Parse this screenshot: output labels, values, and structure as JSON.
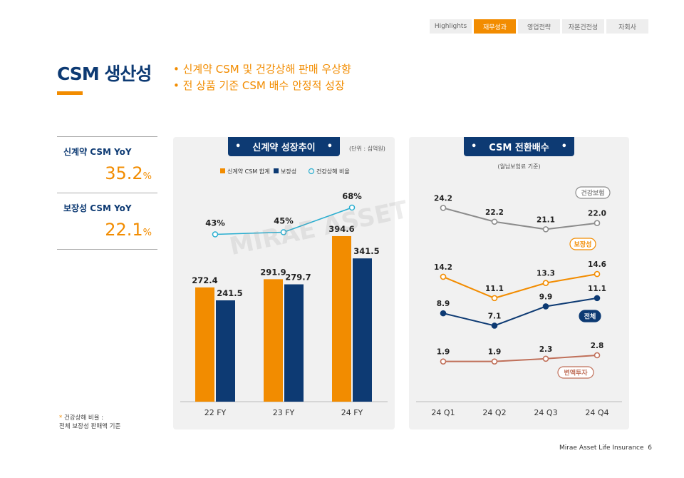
{
  "nav": {
    "tabs": [
      {
        "label": "Highlights",
        "active": false
      },
      {
        "label": "재무성과",
        "active": true
      },
      {
        "label": "영업전략",
        "active": false
      },
      {
        "label": "자본건전성",
        "active": false
      },
      {
        "label": "자회사",
        "active": false
      }
    ]
  },
  "header": {
    "title": "CSM 생산성",
    "bullets": [
      "• 신계약 CSM 및 건강상해 판매 우상향",
      "• 전 상품 기준 CSM 배수 안정적 성장"
    ]
  },
  "kpis": [
    {
      "label": "신계약 CSM YoY",
      "value": "35.2",
      "unit": "%"
    },
    {
      "label": "보장성 CSM YoY",
      "value": "22.1",
      "unit": "%"
    }
  ],
  "note": {
    "star": "*",
    "line1": "건강상해 비율 :",
    "line2": "전체 보장성 판매액 기준"
  },
  "colors": {
    "orange": "#f28c00",
    "navy": "#0d3a73",
    "teal": "#2aaed0",
    "gray": "#8c8c8c",
    "brown": "#c0705a"
  },
  "watermark": "MIRAE ASSET 미래에셋생명",
  "footer": {
    "company": "Mirae Asset Life Insurance",
    "page": "6"
  },
  "chart_data": [
    {
      "type": "bar",
      "title": "신계약 성장추이",
      "unit": "(단위 : 십억원)",
      "categories": [
        "22 FY",
        "23 FY",
        "24 FY"
      ],
      "series": [
        {
          "name": "신계약 CSM 합계",
          "values": [
            272.4,
            291.9,
            394.6
          ],
          "color": "#f28c00"
        },
        {
          "name": "보장성",
          "values": [
            241.5,
            279.7,
            341.5
          ],
          "color": "#0d3a73"
        }
      ],
      "line": {
        "name": "건강상해 비율",
        "values": [
          43,
          45,
          68
        ],
        "labels": [
          "43%",
          "45%",
          "68%"
        ],
        "color": "#2aaed0"
      },
      "legend": "top"
    },
    {
      "type": "line",
      "title": "CSM 전환배수",
      "subtitle": "(월납보험료 기준)",
      "categories": [
        "24 Q1",
        "24 Q2",
        "24 Q3",
        "24 Q4"
      ],
      "series": [
        {
          "name": "건강보험",
          "values": [
            24.2,
            22.2,
            21.1,
            22.0
          ],
          "labels": [
            "24.2",
            "22.2",
            "21.1",
            "22.0"
          ],
          "color": "#8c8c8c"
        },
        {
          "name": "보장성",
          "values": [
            14.2,
            11.1,
            13.3,
            14.6
          ],
          "labels": [
            "14.2",
            "11.1",
            "13.3",
            "14.6"
          ],
          "color": "#f28c00"
        },
        {
          "name": "전체",
          "values": [
            8.9,
            7.1,
            9.9,
            11.1
          ],
          "labels": [
            "8.9",
            "7.1",
            "9.9",
            "11.1"
          ],
          "color": "#0d3a73"
        },
        {
          "name": "변액투자",
          "values": [
            1.9,
            1.9,
            2.3,
            2.8
          ],
          "labels": [
            "1.9",
            "1.9",
            "2.3",
            "2.8"
          ],
          "color": "#c0705a"
        }
      ]
    }
  ]
}
